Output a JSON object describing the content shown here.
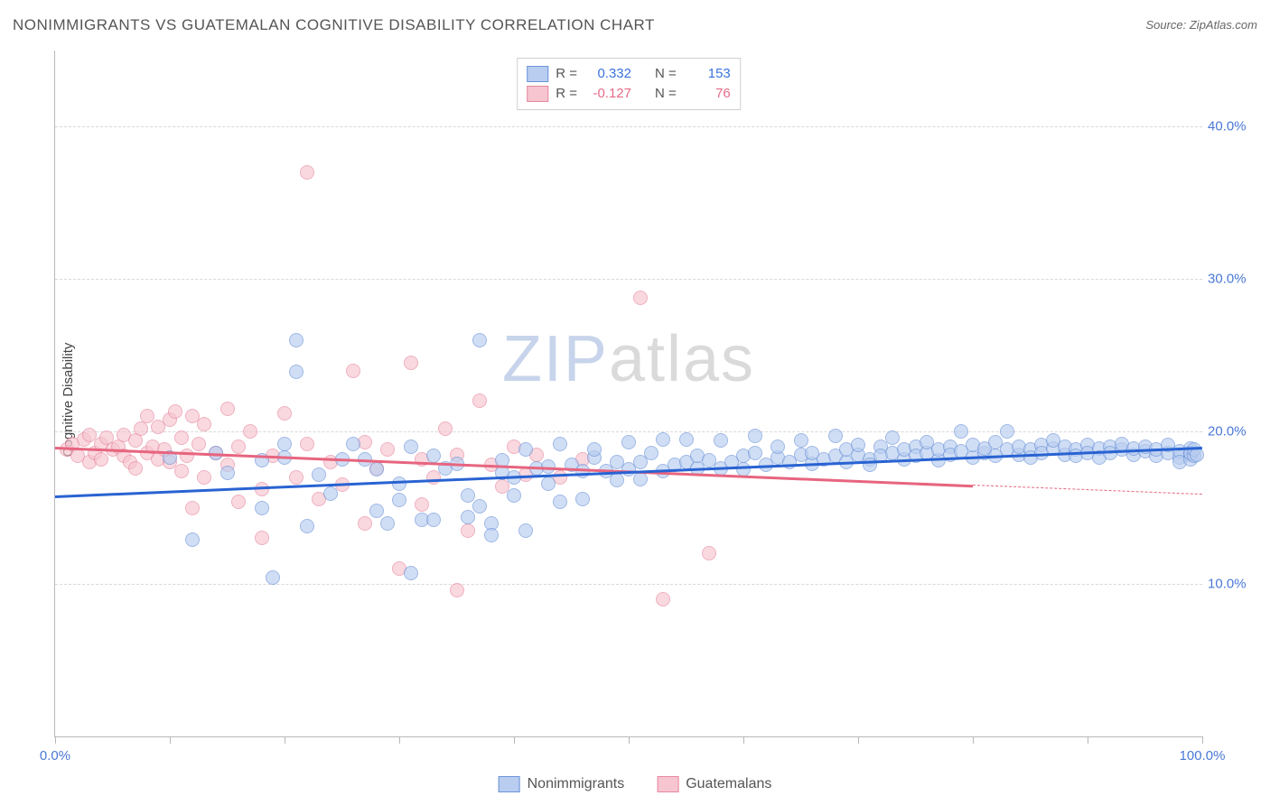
{
  "title": "NONIMMIGRANTS VS GUATEMALAN COGNITIVE DISABILITY CORRELATION CHART",
  "source_label": "Source: ",
  "source_name": "ZipAtlas.com",
  "ylabel": "Cognitive Disability",
  "watermark_a": "ZIP",
  "watermark_b": "atlas",
  "chart": {
    "type": "scatter",
    "xlim": [
      0,
      100
    ],
    "ylim": [
      0,
      45
    ],
    "xtick_positions": [
      0,
      10,
      20,
      30,
      40,
      50,
      60,
      70,
      80,
      90,
      100
    ],
    "xtick_labels_shown": {
      "0": "0.0%",
      "100": "100.0%"
    },
    "ytick_positions": [
      10,
      20,
      30,
      40
    ],
    "ytick_labels": {
      "10": "10.0%",
      "20": "20.0%",
      "30": "30.0%",
      "40": "40.0%"
    },
    "background_color": "#ffffff",
    "grid_color": "#d8d8d8",
    "axis_color": "#b8b8b8",
    "tick_label_color": "#4a78d6",
    "marker_radius": 8,
    "marker_stroke_width": 1.2,
    "series": {
      "nonimmigrants": {
        "label": "Nonimmigrants",
        "fill": "#b8cdf0",
        "stroke": "#6c93d8",
        "fill_opacity": 0.65,
        "trend_color": "#2963d2",
        "R_label": "R =",
        "R": "0.332",
        "N_label": "N =",
        "N": "153",
        "stat_color": "#3a72e0",
        "trend": {
          "x1": 0,
          "y1": 15.8,
          "x2": 100,
          "y2": 19.0
        },
        "points": [
          [
            10,
            18.3
          ],
          [
            12,
            12.9
          ],
          [
            14,
            18.6
          ],
          [
            15,
            17.3
          ],
          [
            18,
            15.0
          ],
          [
            18,
            18.1
          ],
          [
            19,
            10.4
          ],
          [
            20,
            18.3
          ],
          [
            20,
            19.2
          ],
          [
            21,
            23.9
          ],
          [
            21,
            26.0
          ],
          [
            22,
            13.8
          ],
          [
            23,
            17.2
          ],
          [
            24,
            15.9
          ],
          [
            25,
            18.2
          ],
          [
            26,
            19.2
          ],
          [
            27,
            18.2
          ],
          [
            28,
            14.8
          ],
          [
            28,
            17.5
          ],
          [
            29,
            14.0
          ],
          [
            30,
            16.6
          ],
          [
            30,
            15.5
          ],
          [
            31,
            19.0
          ],
          [
            31,
            10.7
          ],
          [
            32,
            14.2
          ],
          [
            33,
            18.4
          ],
          [
            33,
            14.2
          ],
          [
            34,
            17.6
          ],
          [
            35,
            17.9
          ],
          [
            36,
            15.8
          ],
          [
            36,
            14.4
          ],
          [
            37,
            15.1
          ],
          [
            37,
            26.0
          ],
          [
            38,
            14.0
          ],
          [
            38,
            13.2
          ],
          [
            39,
            17.3
          ],
          [
            39,
            18.1
          ],
          [
            40,
            17.0
          ],
          [
            40,
            15.8
          ],
          [
            41,
            18.8
          ],
          [
            41,
            13.5
          ],
          [
            42,
            17.6
          ],
          [
            43,
            16.6
          ],
          [
            43,
            17.7
          ],
          [
            44,
            19.2
          ],
          [
            44,
            15.4
          ],
          [
            45,
            17.8
          ],
          [
            46,
            17.4
          ],
          [
            46,
            15.6
          ],
          [
            47,
            18.3
          ],
          [
            47,
            18.8
          ],
          [
            48,
            17.4
          ],
          [
            49,
            16.8
          ],
          [
            49,
            18.0
          ],
          [
            50,
            17.5
          ],
          [
            50,
            19.3
          ],
          [
            51,
            18.0
          ],
          [
            51,
            16.9
          ],
          [
            52,
            18.6
          ],
          [
            53,
            17.4
          ],
          [
            53,
            19.5
          ],
          [
            54,
            17.8
          ],
          [
            55,
            18.0
          ],
          [
            55,
            19.5
          ],
          [
            56,
            17.6
          ],
          [
            56,
            18.4
          ],
          [
            57,
            18.1
          ],
          [
            58,
            17.6
          ],
          [
            58,
            19.4
          ],
          [
            59,
            18.0
          ],
          [
            60,
            18.4
          ],
          [
            60,
            17.5
          ],
          [
            61,
            18.6
          ],
          [
            61,
            19.7
          ],
          [
            62,
            17.8
          ],
          [
            63,
            18.3
          ],
          [
            63,
            19.0
          ],
          [
            64,
            18.0
          ],
          [
            65,
            18.5
          ],
          [
            65,
            19.4
          ],
          [
            66,
            17.9
          ],
          [
            66,
            18.6
          ],
          [
            67,
            18.2
          ],
          [
            68,
            18.4
          ],
          [
            68,
            19.7
          ],
          [
            69,
            18.0
          ],
          [
            69,
            18.8
          ],
          [
            70,
            18.5
          ],
          [
            70,
            19.1
          ],
          [
            71,
            18.2
          ],
          [
            71,
            17.8
          ],
          [
            72,
            19.0
          ],
          [
            72,
            18.4
          ],
          [
            73,
            18.6
          ],
          [
            73,
            19.6
          ],
          [
            74,
            18.2
          ],
          [
            74,
            18.8
          ],
          [
            75,
            19.0
          ],
          [
            75,
            18.4
          ],
          [
            76,
            18.6
          ],
          [
            76,
            19.3
          ],
          [
            77,
            18.1
          ],
          [
            77,
            18.8
          ],
          [
            78,
            19.0
          ],
          [
            78,
            18.5
          ],
          [
            79,
            18.7
          ],
          [
            79,
            20.0
          ],
          [
            80,
            18.3
          ],
          [
            80,
            19.1
          ],
          [
            81,
            18.6
          ],
          [
            81,
            18.9
          ],
          [
            82,
            18.4
          ],
          [
            82,
            19.3
          ],
          [
            83,
            18.8
          ],
          [
            83,
            20.0
          ],
          [
            84,
            18.5
          ],
          [
            84,
            19.0
          ],
          [
            85,
            18.8
          ],
          [
            85,
            18.3
          ],
          [
            86,
            19.1
          ],
          [
            86,
            18.6
          ],
          [
            87,
            18.9
          ],
          [
            87,
            19.4
          ],
          [
            88,
            18.5
          ],
          [
            88,
            19.0
          ],
          [
            89,
            18.8
          ],
          [
            89,
            18.4
          ],
          [
            90,
            19.1
          ],
          [
            90,
            18.6
          ],
          [
            91,
            18.9
          ],
          [
            91,
            18.3
          ],
          [
            92,
            19.0
          ],
          [
            92,
            18.6
          ],
          [
            93,
            18.8
          ],
          [
            93,
            19.2
          ],
          [
            94,
            18.5
          ],
          [
            94,
            18.9
          ],
          [
            95,
            18.7
          ],
          [
            95,
            19.0
          ],
          [
            96,
            18.4
          ],
          [
            96,
            18.8
          ],
          [
            97,
            18.6
          ],
          [
            97,
            19.1
          ],
          [
            98,
            18.3
          ],
          [
            98,
            18.7
          ],
          [
            98,
            18.0
          ],
          [
            99,
            18.5
          ],
          [
            99,
            18.9
          ],
          [
            99,
            18.2
          ],
          [
            99,
            18.6
          ],
          [
            99.3,
            18.4
          ],
          [
            99.3,
            18.8
          ],
          [
            99.5,
            18.5
          ]
        ]
      },
      "guatemalans": {
        "label": "Guatemalans",
        "fill": "#f6c5cf",
        "stroke": "#e887a0",
        "fill_opacity": 0.65,
        "trend_color": "#e7657f",
        "R_label": "R =",
        "R": "-0.127",
        "N_label": "N =",
        "N": "76",
        "stat_color": "#e76b88",
        "trend": {
          "x1": 0,
          "y1": 19.0,
          "x2": 80,
          "y2": 16.5
        },
        "trend_dash": {
          "x1": 80,
          "y1": 16.5,
          "x2": 100,
          "y2": 15.9
        },
        "points": [
          [
            1,
            18.8
          ],
          [
            1.5,
            19.2
          ],
          [
            2,
            18.4
          ],
          [
            2.5,
            19.5
          ],
          [
            3,
            18.0
          ],
          [
            3,
            19.8
          ],
          [
            3.5,
            18.6
          ],
          [
            4,
            19.2
          ],
          [
            4,
            18.2
          ],
          [
            4.5,
            19.6
          ],
          [
            5,
            18.8
          ],
          [
            5.5,
            19.0
          ],
          [
            6,
            18.4
          ],
          [
            6,
            19.8
          ],
          [
            6.5,
            18.0
          ],
          [
            7,
            19.4
          ],
          [
            7,
            17.6
          ],
          [
            7.5,
            20.2
          ],
          [
            8,
            18.6
          ],
          [
            8,
            21.0
          ],
          [
            8.5,
            19.0
          ],
          [
            9,
            18.2
          ],
          [
            9,
            20.3
          ],
          [
            9.5,
            18.8
          ],
          [
            10,
            20.8
          ],
          [
            10,
            18.0
          ],
          [
            10.5,
            21.3
          ],
          [
            11,
            17.4
          ],
          [
            11,
            19.6
          ],
          [
            11.5,
            18.4
          ],
          [
            12,
            21.0
          ],
          [
            12,
            15.0
          ],
          [
            12.5,
            19.2
          ],
          [
            13,
            20.5
          ],
          [
            13,
            17.0
          ],
          [
            14,
            18.6
          ],
          [
            15,
            21.5
          ],
          [
            15,
            17.8
          ],
          [
            16,
            15.4
          ],
          [
            16,
            19.0
          ],
          [
            17,
            20.0
          ],
          [
            18,
            16.2
          ],
          [
            18,
            13.0
          ],
          [
            19,
            18.4
          ],
          [
            20,
            21.2
          ],
          [
            21,
            17.0
          ],
          [
            22,
            37.0
          ],
          [
            22,
            19.2
          ],
          [
            23,
            15.6
          ],
          [
            24,
            18.0
          ],
          [
            25,
            16.5
          ],
          [
            26,
            24.0
          ],
          [
            27,
            19.3
          ],
          [
            27,
            14.0
          ],
          [
            28,
            17.6
          ],
          [
            29,
            18.8
          ],
          [
            30,
            11.0
          ],
          [
            31,
            24.5
          ],
          [
            32,
            15.2
          ],
          [
            32,
            18.2
          ],
          [
            33,
            17.0
          ],
          [
            34,
            20.2
          ],
          [
            35,
            18.5
          ],
          [
            35,
            9.6
          ],
          [
            36,
            13.5
          ],
          [
            37,
            22.0
          ],
          [
            38,
            17.8
          ],
          [
            39,
            16.4
          ],
          [
            40,
            19.0
          ],
          [
            41,
            17.2
          ],
          [
            42,
            18.5
          ],
          [
            44,
            17.0
          ],
          [
            46,
            18.2
          ],
          [
            51,
            28.8
          ],
          [
            53,
            9.0
          ],
          [
            57,
            12.0
          ]
        ]
      }
    }
  }
}
